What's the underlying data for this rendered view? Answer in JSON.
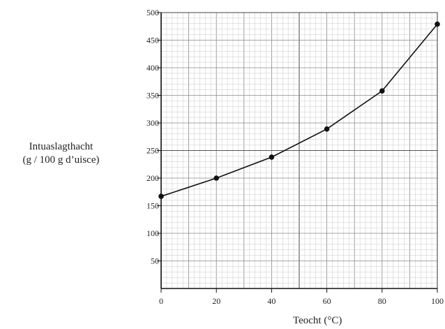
{
  "chart_data": {
    "type": "line",
    "xlabel": "Teocht (°C)",
    "ylabel_line1": "Intuaslagthacht",
    "ylabel_line2": "(g / 100 g d’uisce)",
    "xlim": [
      0,
      100
    ],
    "ylim": [
      0,
      500
    ],
    "x_ticks": [
      0,
      20,
      40,
      60,
      80,
      100
    ],
    "y_ticks": [
      50,
      100,
      150,
      200,
      250,
      300,
      350,
      400,
      450,
      500
    ],
    "grid": true,
    "series": [
      {
        "x": [
          0,
          20,
          40,
          60,
          80,
          100
        ],
        "values": [
          167,
          200,
          238,
          289,
          358,
          479
        ]
      }
    ]
  }
}
